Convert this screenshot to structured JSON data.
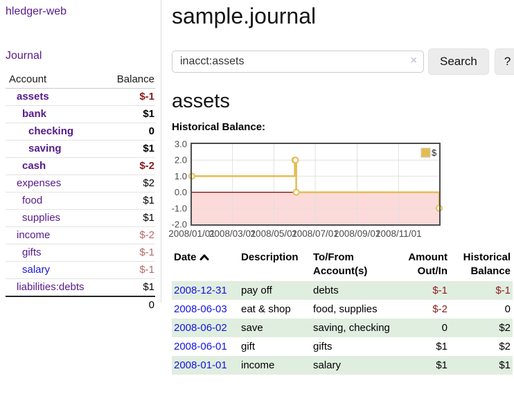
{
  "app": {
    "brand": "hledger-web",
    "nav_journal": "Journal"
  },
  "sidebar": {
    "header": {
      "account": "Account",
      "balance": "Balance"
    },
    "accounts": [
      {
        "name": "assets",
        "balance": "$-1",
        "depth": 1,
        "bold": true,
        "negative": "dark"
      },
      {
        "name": "bank",
        "balance": "$1",
        "depth": 2,
        "bold": true,
        "negative": null
      },
      {
        "name": "checking",
        "balance": "0",
        "depth": 3,
        "bold": true,
        "negative": null
      },
      {
        "name": "saving",
        "balance": "$1",
        "depth": 3,
        "bold": true,
        "negative": null
      },
      {
        "name": "cash",
        "balance": "$-2",
        "depth": 2,
        "bold": true,
        "negative": "dark"
      },
      {
        "name": "expenses",
        "balance": "$2",
        "depth": 1,
        "bold": false,
        "negative": null
      },
      {
        "name": "food",
        "balance": "$1",
        "depth": 2,
        "bold": false,
        "negative": null
      },
      {
        "name": "supplies",
        "balance": "$1",
        "depth": 2,
        "bold": false,
        "negative": null
      },
      {
        "name": "income",
        "balance": "$-2",
        "depth": 1,
        "bold": false,
        "negative": "light"
      },
      {
        "name": "gifts",
        "balance": "$-1",
        "depth": 2,
        "bold": false,
        "negative": "light"
      },
      {
        "name": "salary",
        "balance": "$-1",
        "depth": 2,
        "bold": false,
        "negative": "light"
      },
      {
        "name": "liabilities:debts",
        "balance": "$1",
        "depth": 1,
        "bold": false,
        "negative": null
      }
    ],
    "total": "0"
  },
  "header": {
    "title": "sample.journal"
  },
  "search": {
    "value": "inacct:assets",
    "clear_icon": "×",
    "button": "Search",
    "help_button": "?"
  },
  "main": {
    "account_heading": "assets",
    "chart_label": "Historical Balance:"
  },
  "chart_data": {
    "type": "line",
    "steps": true,
    "title": "Historical Balance",
    "xlabel": "",
    "ylabel": "",
    "x_range_days": [
      0,
      365
    ],
    "xticks": [
      {
        "day": 0,
        "label": "2008/01/01"
      },
      {
        "day": 60,
        "label": "2008/03/01"
      },
      {
        "day": 121,
        "label": "2008/05/01"
      },
      {
        "day": 182,
        "label": "2008/07/01"
      },
      {
        "day": 244,
        "label": "2008/09/01"
      },
      {
        "day": 305,
        "label": "2008/11/01"
      }
    ],
    "ylim": [
      -2,
      3
    ],
    "yticks": [
      {
        "v": 3,
        "label": "3.0"
      },
      {
        "v": 2,
        "label": "2.0"
      },
      {
        "v": 1,
        "label": "1.0"
      },
      {
        "v": 0,
        "label": "0.0"
      },
      {
        "v": -1,
        "label": "-1.0"
      },
      {
        "v": -2,
        "label": "-2.0"
      }
    ],
    "series": [
      {
        "name": "$",
        "color": "#e3bd52",
        "points": [
          {
            "date": "2008-01-01",
            "day": 0,
            "value": 1
          },
          {
            "date": "2008-06-01",
            "day": 152,
            "value": 2
          },
          {
            "date": "2008-06-02",
            "day": 153,
            "value": 2
          },
          {
            "date": "2008-06-03",
            "day": 154,
            "value": 0
          },
          {
            "date": "2008-12-31",
            "day": 365,
            "value": -1
          }
        ]
      }
    ],
    "legend": {
      "position": "top-right",
      "label": "$"
    },
    "grid": true,
    "zero_line_color": "#8b0000",
    "negative_region_fill": "#fcdada",
    "grid_color": "#e0e0e0",
    "plot_border_color": "#4d4d4d",
    "tick_text_color": "#4a4a4a"
  },
  "register": {
    "columns": {
      "date": "Date",
      "description": "Description",
      "tofrom_l1": "To/From",
      "tofrom_l2": "Account(s)",
      "amount_l1": "Amount",
      "amount_l2": "Out/In",
      "balance_l1": "Historical",
      "balance_l2": "Balance"
    },
    "rows": [
      {
        "date": "2008-12-31",
        "description": "pay off",
        "accounts": "debts",
        "amount": "$-1",
        "balance": "$-1"
      },
      {
        "date": "2008-06-03",
        "description": "eat & shop",
        "accounts": "food, supplies",
        "amount": "$-2",
        "balance": "0"
      },
      {
        "date": "2008-06-02",
        "description": "save",
        "accounts": "saving, checking",
        "amount": "0",
        "balance": "$2"
      },
      {
        "date": "2008-06-01",
        "description": "gift",
        "accounts": "gifts",
        "amount": "$1",
        "balance": "$2"
      },
      {
        "date": "2008-01-01",
        "description": "income",
        "accounts": "salary",
        "amount": "$1",
        "balance": "$1"
      }
    ]
  }
}
